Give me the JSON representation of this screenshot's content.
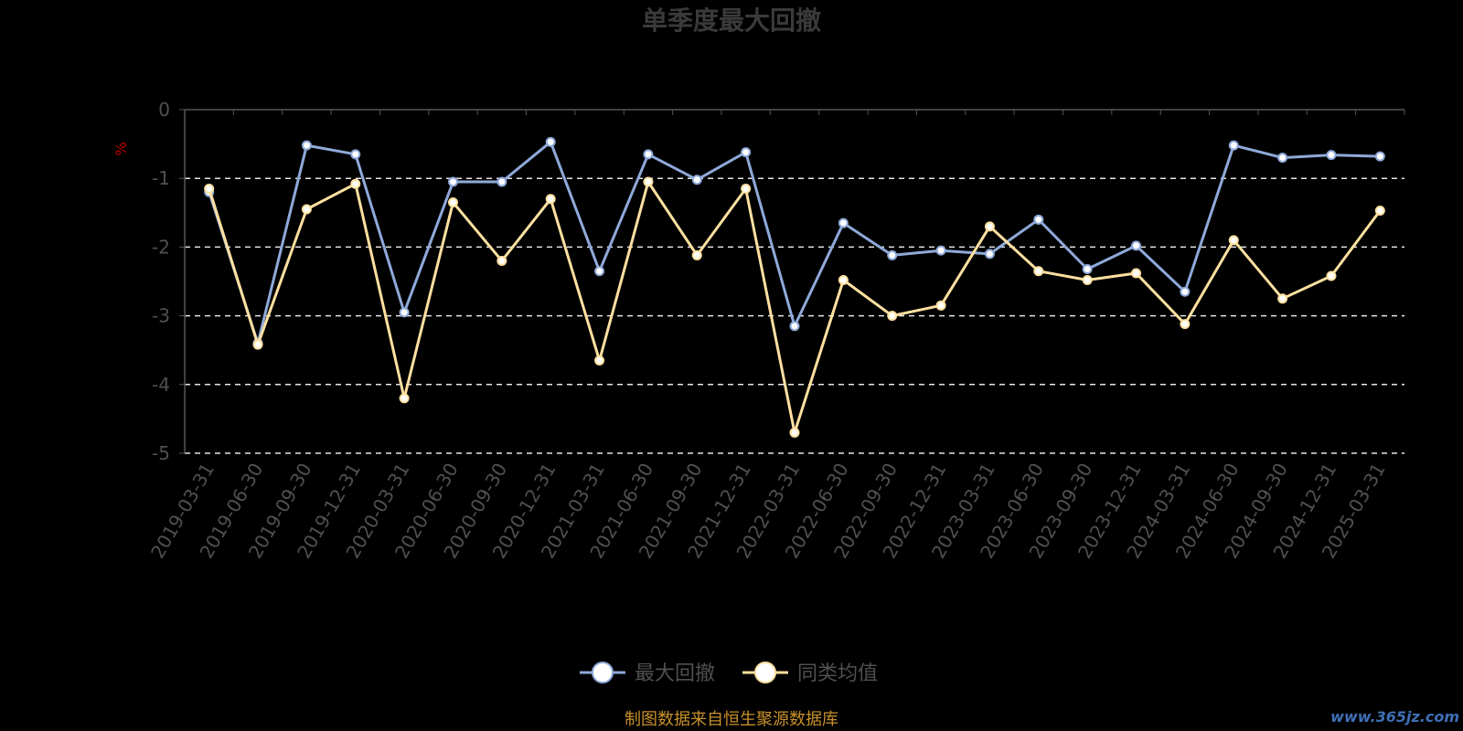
{
  "chart_data": {
    "type": "line",
    "title": "单季度最大回撤",
    "ylabel": "%",
    "ylim": [
      -5,
      0
    ],
    "yticks": [
      0,
      -1,
      -2,
      -3,
      -4,
      -5
    ],
    "grid": true,
    "legend_position": "bottom",
    "categories": [
      "2019-03-31",
      "2019-06-30",
      "2019-09-30",
      "2019-12-31",
      "2020-03-31",
      "2020-06-30",
      "2020-09-30",
      "2020-12-31",
      "2021-03-31",
      "2021-06-30",
      "2021-09-30",
      "2021-12-31",
      "2022-03-31",
      "2022-06-30",
      "2022-09-30",
      "2022-12-31",
      "2023-03-31",
      "2023-06-30",
      "2023-09-30",
      "2023-12-31",
      "2024-03-31",
      "2024-06-30",
      "2024-09-30",
      "2024-12-31",
      "2025-03-31"
    ],
    "series": [
      {
        "name": "最大回撤",
        "color": "#8fa9d9",
        "values": [
          -1.2,
          -3.4,
          -0.52,
          -0.65,
          -2.95,
          -1.05,
          -1.05,
          -0.47,
          -2.35,
          -0.65,
          -1.02,
          -0.62,
          -3.15,
          -1.65,
          -2.12,
          -2.05,
          -2.1,
          -1.6,
          -2.32,
          -1.98,
          -2.65,
          -0.52,
          -0.7,
          -0.66,
          -0.68
        ]
      },
      {
        "name": "同类均值",
        "color": "#ffe0a0",
        "values": [
          -1.15,
          -3.42,
          -1.45,
          -1.08,
          -4.2,
          -1.35,
          -2.2,
          -1.3,
          -3.65,
          -1.05,
          -2.12,
          -1.15,
          -4.7,
          -2.48,
          -3.0,
          -2.85,
          -1.7,
          -2.35,
          -2.48,
          -2.38,
          -3.12,
          -1.9,
          -2.75,
          -2.42,
          -1.47
        ]
      }
    ]
  },
  "footer": "制图数据来自恒生聚源数据库",
  "watermark": "www.365jz.com"
}
